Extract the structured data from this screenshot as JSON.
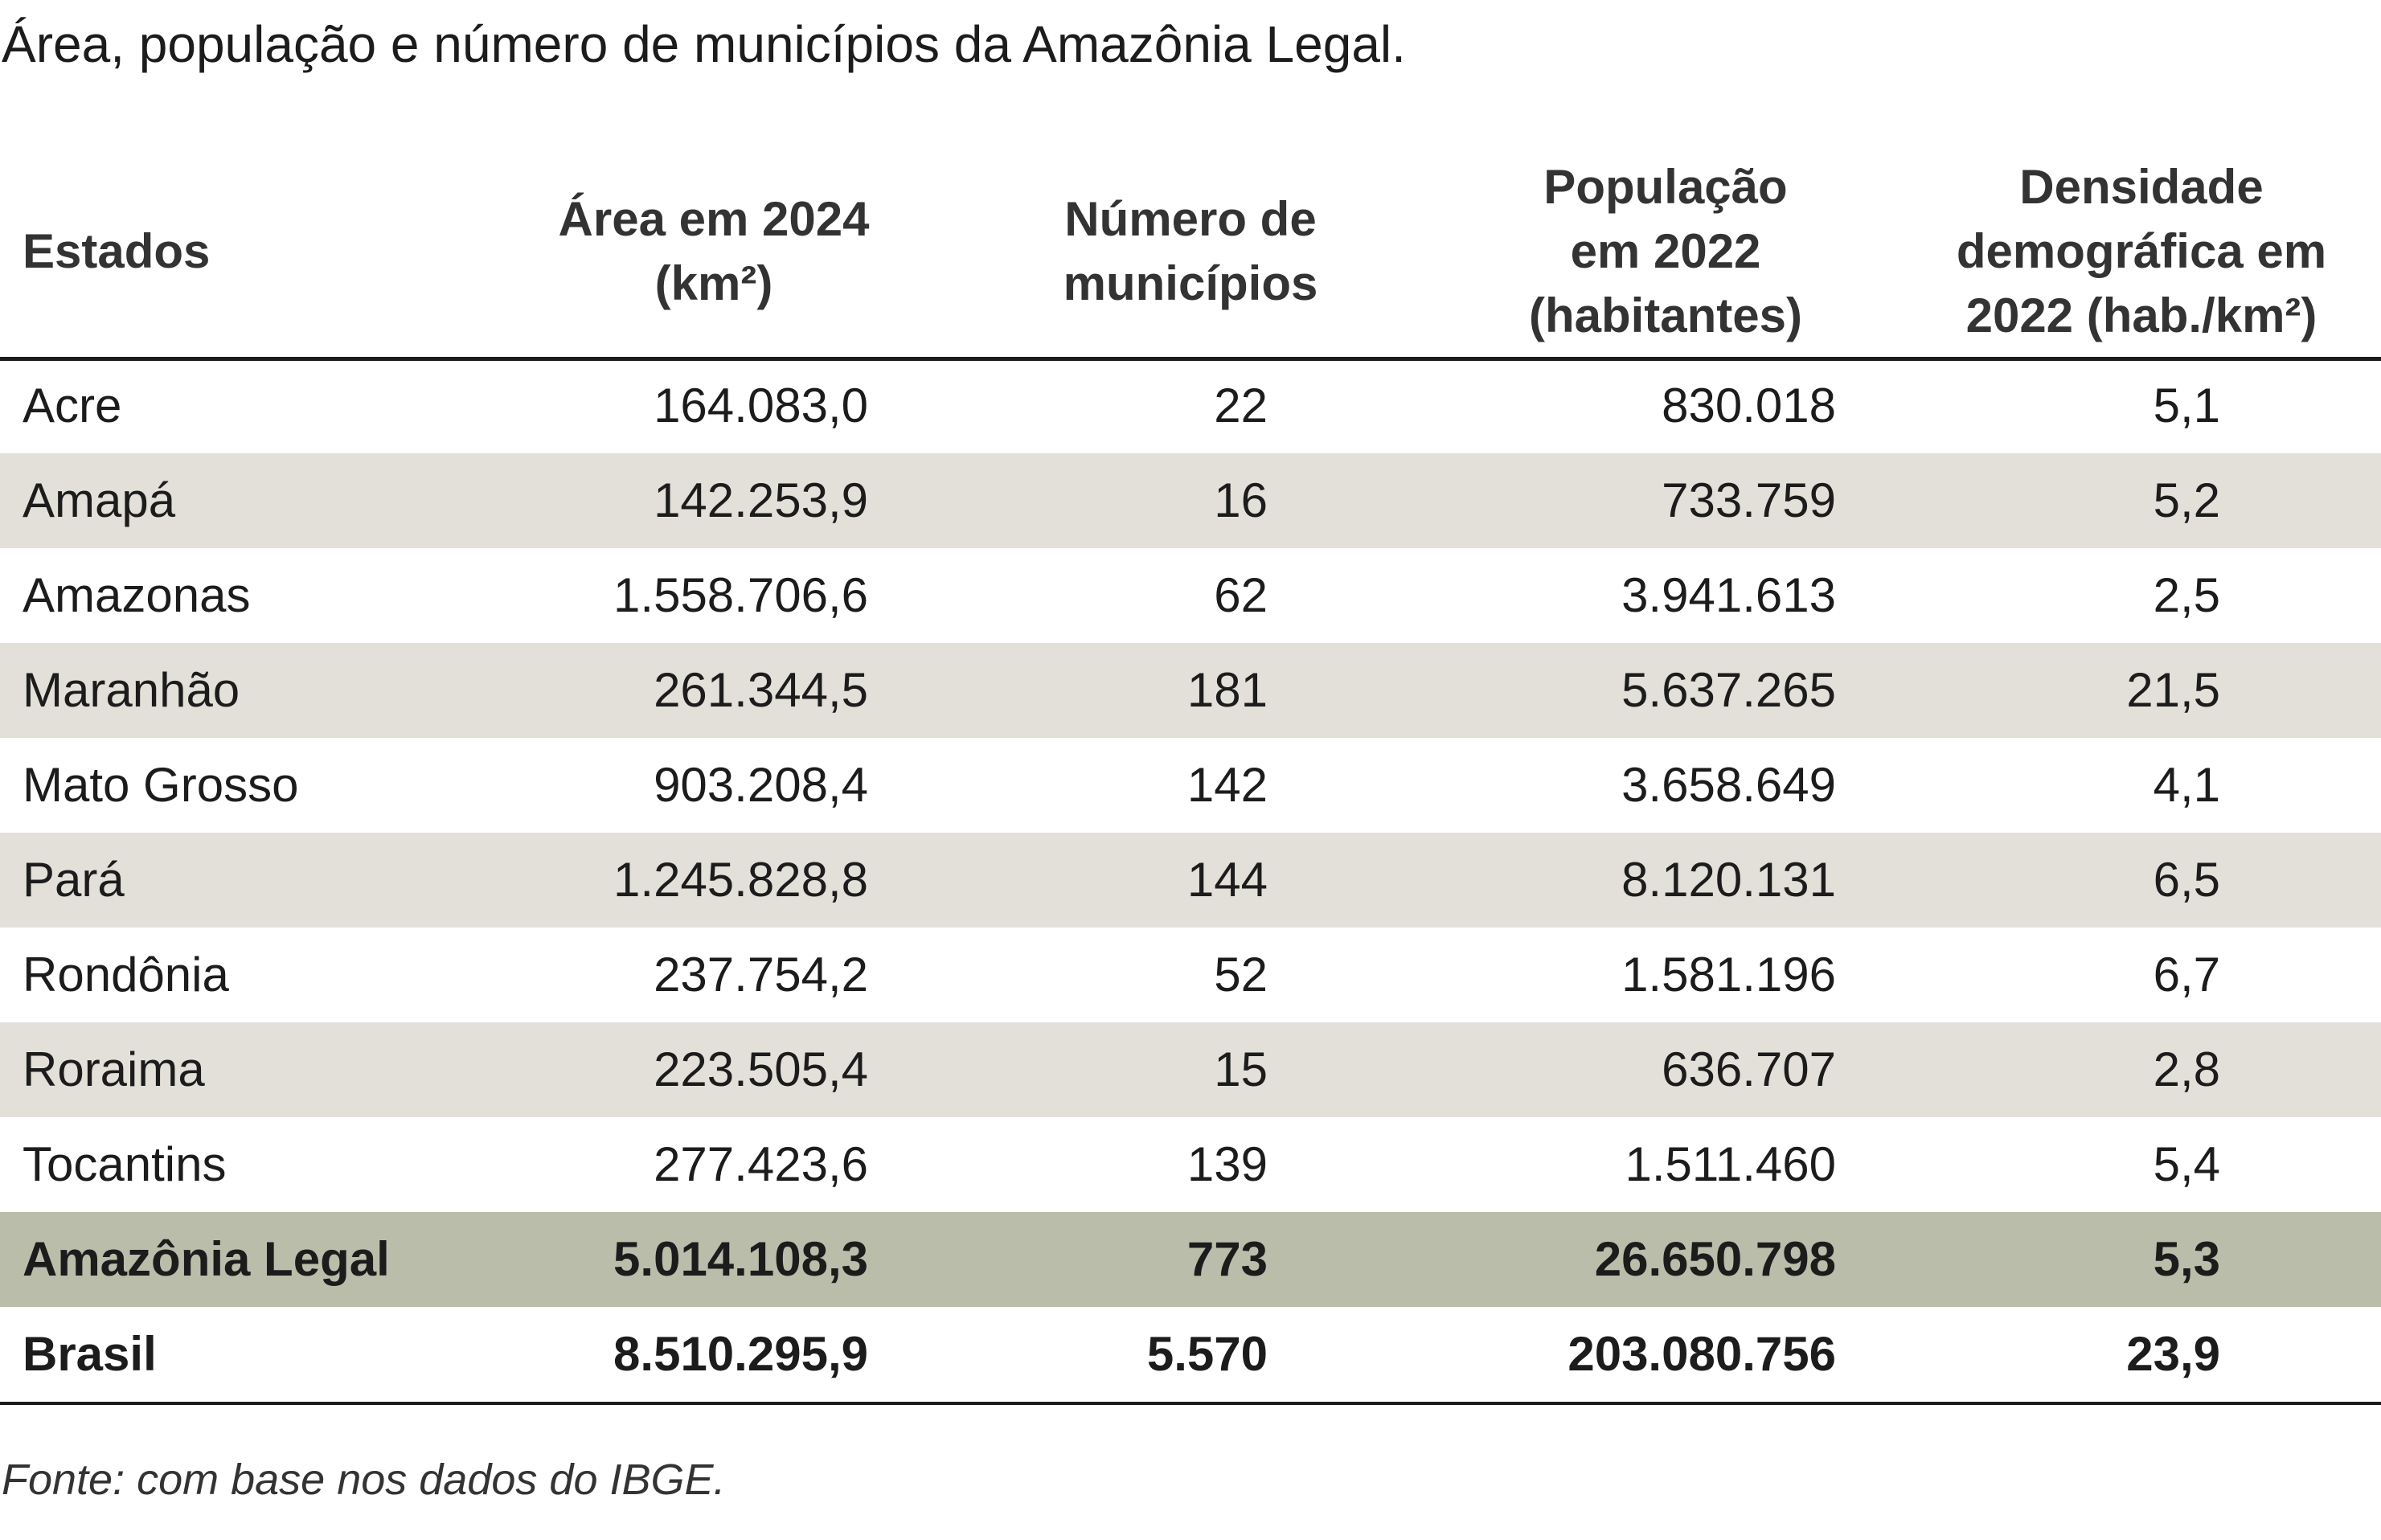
{
  "title": "Área, população e número de municípios da Amazônia Legal.",
  "table": {
    "header": [
      "Estados",
      "Área em 2024\n(km²)",
      "Número de\nmunicípios",
      "População\nem 2022\n(habitantes)",
      "Densidade\ndemográfica em\n2022 (hab./km²)"
    ],
    "rows": [
      [
        "Acre",
        "164.083,0",
        "22",
        "830.018",
        "5,1"
      ],
      [
        "Amapá",
        "142.253,9",
        "16",
        "733.759",
        "5,2"
      ],
      [
        "Amazonas",
        "1.558.706,6",
        "62",
        "3.941.613",
        "2,5"
      ],
      [
        "Maranhão",
        "261.344,5",
        "181",
        "5.637.265",
        "21,5"
      ],
      [
        "Mato Grosso",
        "903.208,4",
        "142",
        "3.658.649",
        "4,1"
      ],
      [
        "Pará",
        "1.245.828,8",
        "144",
        "8.120.131",
        "6,5"
      ],
      [
        "Rondônia",
        "237.754,2",
        "52",
        "1.581.196",
        "6,7"
      ],
      [
        "Roraima",
        "223.505,4",
        "15",
        "636.707",
        "2,8"
      ],
      [
        "Tocantins",
        "277.423,6",
        "139",
        "1.511.460",
        "5,4"
      ],
      [
        "Amazônia Legal",
        "5.014.108,3",
        "773",
        "26.650.798",
        "5,3"
      ],
      [
        "Brasil",
        "8.510.295,9",
        "5.570",
        "203.080.756",
        "23,9"
      ]
    ]
  },
  "source": "Fonte: com base nos dados do IBGE."
}
